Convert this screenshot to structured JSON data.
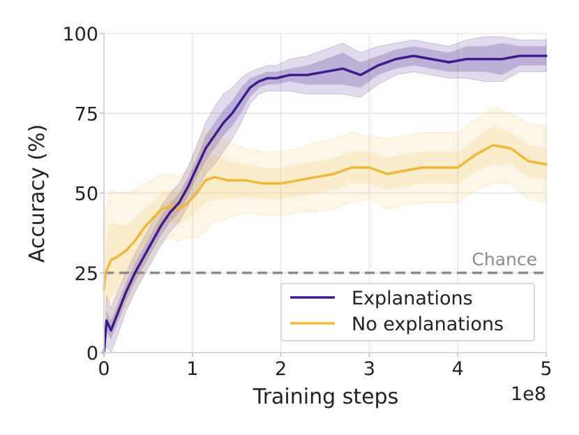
{
  "chart_data": {
    "type": "line",
    "xlabel": "Training steps",
    "ylabel": "Accuracy (%)",
    "x_offset_label": "1e8",
    "xlim": [
      0,
      5
    ],
    "ylim": [
      0,
      100
    ],
    "xticks": [
      0,
      1,
      2,
      3,
      4,
      5
    ],
    "xtick_labels": [
      "0",
      "1",
      "2",
      "3",
      "4",
      "5"
    ],
    "yticks": [
      0,
      25,
      50,
      75,
      100
    ],
    "ytick_labels": [
      "0",
      "25",
      "50",
      "75",
      "100"
    ],
    "grid": true,
    "legend_position": "lower-right",
    "reference_line": {
      "value": 25,
      "label": "Chance",
      "color": "#8c8c8c"
    },
    "series": [
      {
        "name": "Explanations",
        "color": "#3f1a8a",
        "x": [
          0,
          0.03,
          0.08,
          0.15,
          0.25,
          0.35,
          0.45,
          0.55,
          0.65,
          0.75,
          0.85,
          0.95,
          1.05,
          1.15,
          1.25,
          1.35,
          1.45,
          1.55,
          1.65,
          1.75,
          1.85,
          1.95,
          2.1,
          2.3,
          2.5,
          2.7,
          2.9,
          3.1,
          3.3,
          3.5,
          3.7,
          3.9,
          4.1,
          4.3,
          4.5,
          4.7,
          4.85,
          5.0
        ],
        "y": [
          0,
          10,
          7,
          12,
          19,
          25,
          30,
          35,
          40,
          44,
          47,
          52,
          58,
          64,
          68,
          72,
          75,
          79,
          83,
          85,
          86,
          86,
          87,
          87,
          88,
          89,
          87,
          90,
          92,
          93,
          92,
          91,
          92,
          92,
          92,
          93,
          93,
          93
        ],
        "band_inner": [
          0,
          3,
          3,
          3,
          3,
          3,
          3,
          3,
          3,
          3,
          3,
          3,
          3,
          4,
          4,
          4,
          4,
          4,
          3,
          2,
          2,
          2,
          2,
          3,
          4,
          5,
          4,
          3,
          3,
          3,
          3,
          3,
          4,
          4,
          5,
          3,
          3,
          3
        ],
        "band_outer": [
          0,
          8,
          7,
          7,
          6,
          6,
          6,
          6,
          6,
          6,
          6,
          6,
          7,
          8,
          9,
          9,
          8,
          7,
          5,
          4,
          4,
          4,
          5,
          6,
          7,
          8,
          7,
          6,
          5,
          5,
          5,
          5,
          6,
          7,
          7,
          5,
          5,
          5
        ]
      },
      {
        "name": "No explanations",
        "color": "#f0b838",
        "x": [
          0,
          0.02,
          0.08,
          0.15,
          0.25,
          0.35,
          0.45,
          0.55,
          0.65,
          0.75,
          0.85,
          0.95,
          1.05,
          1.15,
          1.25,
          1.4,
          1.6,
          1.8,
          2.0,
          2.2,
          2.4,
          2.6,
          2.8,
          3.0,
          3.2,
          3.4,
          3.6,
          3.8,
          4.0,
          4.2,
          4.4,
          4.6,
          4.8,
          5.0
        ],
        "y": [
          20,
          25,
          29,
          30,
          32,
          35,
          39,
          42,
          45,
          46,
          45,
          47,
          50,
          54,
          55,
          54,
          54,
          53,
          53,
          54,
          55,
          56,
          58,
          58,
          56,
          57,
          58,
          58,
          58,
          62,
          65,
          64,
          60,
          59
        ],
        "band_inner": [
          5,
          10,
          12,
          10,
          8,
          7,
          6,
          5,
          5,
          5,
          5,
          5,
          6,
          7,
          7,
          6,
          5,
          5,
          5,
          5,
          5,
          5,
          5,
          5,
          5,
          5,
          5,
          5,
          5,
          5,
          6,
          5,
          5,
          5
        ],
        "band_outer": [
          10,
          20,
          22,
          20,
          18,
          16,
          14,
          12,
          11,
          10,
          10,
          11,
          14,
          16,
          14,
          12,
          10,
          10,
          10,
          10,
          11,
          11,
          11,
          10,
          11,
          11,
          11,
          11,
          11,
          11,
          12,
          11,
          12,
          12
        ]
      }
    ]
  }
}
